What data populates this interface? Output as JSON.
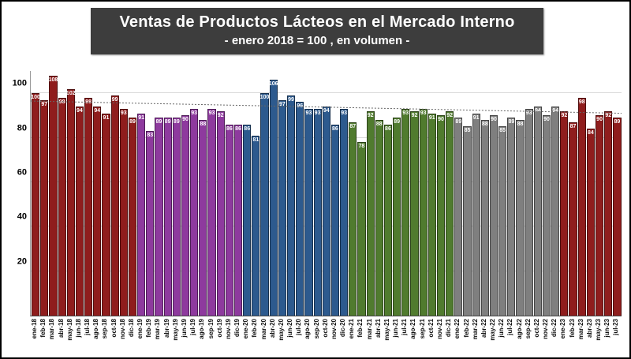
{
  "header": {
    "title": "Ventas de Productos Lácteos en el Mercado Interno",
    "subtitle": "- enero 2018 = 100 , en volumen -"
  },
  "chart_data": {
    "type": "bar",
    "title": "Ventas de Productos Lácteos en el Mercado Interno",
    "subtitle": "- enero 2018 = 100 , en volumen -",
    "xlabel": "",
    "ylabel": "",
    "ylim": [
      0,
      110
    ],
    "yticks": [
      20,
      40,
      60,
      80,
      100
    ],
    "grid": "horizontal",
    "legend": "none",
    "bar_label_color": "#ffffff",
    "trendline": {
      "style": "dotted",
      "color": "#666666",
      "start": 96.5,
      "end": 91.0
    },
    "year_colors": {
      "18": "#8f1d1d",
      "19": "#8e3a9e",
      "20": "#2d5a8e",
      "21": "#507b2e",
      "22": "#7f7f7f",
      "23": "#8f1d1d"
    },
    "categories": [
      "ene-18",
      "feb-18",
      "mar-18",
      "abr-18",
      "may-18",
      "jun-18",
      "jul-18",
      "ago-18",
      "sep-18",
      "oct-18",
      "nov-18",
      "dic-18",
      "ene-19",
      "feb-19",
      "mar-19",
      "abr-19",
      "may-19",
      "jun-19",
      "jul-19",
      "ago-19",
      "sep-19",
      "oct-19",
      "nov-19",
      "dic-19",
      "ene-20",
      "feb-20",
      "mar-20",
      "abr-20",
      "may-20",
      "jun-20",
      "jul-20",
      "ago-20",
      "sep-20",
      "oct-20",
      "nov-20",
      "dic-20",
      "ene-21",
      "feb-21",
      "mar-21",
      "abr-21",
      "may-21",
      "jun-21",
      "jul-21",
      "ago-21",
      "sep-21",
      "oct-21",
      "nov-21",
      "dic-21",
      "ene-22",
      "feb-22",
      "mar-22",
      "abr-22",
      "may-22",
      "jun-22",
      "jul-22",
      "ago-22",
      "sep-22",
      "oct-22",
      "nov-22",
      "dic-22",
      "ene-23",
      "feb-23",
      "mar-23",
      "abr-23",
      "may-23",
      "jun-23",
      "jul-23"
    ],
    "values": [
      100,
      97,
      108,
      98,
      102,
      94,
      98,
      94,
      91,
      99,
      93,
      89,
      91,
      83,
      89,
      89,
      89,
      90,
      93,
      88,
      93,
      92,
      86,
      86,
      86,
      81,
      100,
      106,
      97,
      99,
      96,
      93,
      93,
      94,
      86,
      93,
      87,
      78,
      92,
      88,
      86,
      89,
      93,
      92,
      93,
      91,
      90,
      92,
      89,
      85,
      91,
      88,
      90,
      85,
      89,
      88,
      93,
      94,
      90,
      94,
      92,
      87,
      98,
      84,
      90,
      92,
      89
    ]
  }
}
